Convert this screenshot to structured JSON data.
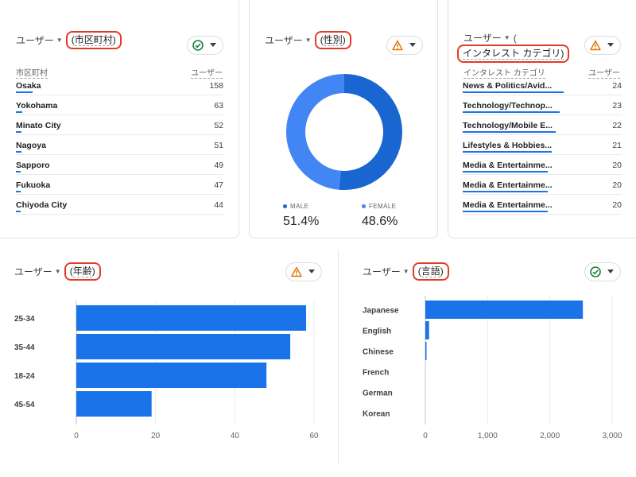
{
  "metric_label": "ユーザー",
  "colors": {
    "accent": "#1a73e8",
    "donut_male": "#1a66d1",
    "donut_female": "#4285f4",
    "highlight": "#e23b26",
    "ok": "#188038",
    "warn": "#e37400"
  },
  "city_card": {
    "dimension": "市区町村",
    "status_icon": "check-circle-icon",
    "col_dim": "市区町村",
    "col_metric": "ユーザー",
    "rows": [
      {
        "label": "Osaka",
        "value": "158",
        "share": 0.15
      },
      {
        "label": "Yokohama",
        "value": "63",
        "share": 0.06
      },
      {
        "label": "Minato City",
        "value": "52",
        "share": 0.05
      },
      {
        "label": "Nagoya",
        "value": "51",
        "share": 0.05
      },
      {
        "label": "Sapporo",
        "value": "49",
        "share": 0.045
      },
      {
        "label": "Fukuoka",
        "value": "47",
        "share": 0.045
      },
      {
        "label": "Chiyoda City",
        "value": "44",
        "share": 0.04
      }
    ]
  },
  "gender_card": {
    "dimension": "性別",
    "status_icon": "warning-icon",
    "legend": [
      {
        "name": "MALE",
        "pct": "51.4%",
        "color": "#1a66d1"
      },
      {
        "name": "FEMALE",
        "pct": "48.6%",
        "color": "#4285f4"
      }
    ]
  },
  "interest_card": {
    "dimension_prefix": "(",
    "dimension": "インタレスト カテゴリ)",
    "status_icon": "warning-icon",
    "col_dim": "インタレスト カテゴリ",
    "col_metric": "ユーザー",
    "rows": [
      {
        "label": "News & Politics/Avid...",
        "value": "24",
        "share": 1.0
      },
      {
        "label": "Technology/Technop...",
        "value": "23",
        "share": 0.96
      },
      {
        "label": "Technology/Mobile E...",
        "value": "22",
        "share": 0.92
      },
      {
        "label": "Lifestyles & Hobbies...",
        "value": "21",
        "share": 0.88
      },
      {
        "label": "Media & Entertainme...",
        "value": "20",
        "share": 0.84
      },
      {
        "label": "Media & Entertainme...",
        "value": "20",
        "share": 0.84
      },
      {
        "label": "Media & Entertainme...",
        "value": "20",
        "share": 0.84
      }
    ]
  },
  "age_card": {
    "dimension": "年齢",
    "status_icon": "warning-icon"
  },
  "lang_card": {
    "dimension": "言語",
    "status_icon": "check-circle-icon"
  },
  "chart_data": [
    {
      "type": "pie",
      "labels": [
        "MALE",
        "FEMALE"
      ],
      "values": [
        51.4,
        48.6
      ],
      "donut": true
    },
    {
      "type": "bar",
      "orientation": "horizontal",
      "categories": [
        "25-34",
        "35-44",
        "18-24",
        "45-54"
      ],
      "values": [
        58,
        54,
        48,
        19
      ],
      "xlim": [
        0,
        60
      ],
      "xticks": [
        "0",
        "20",
        "40",
        "60"
      ],
      "grid": true
    },
    {
      "type": "bar",
      "orientation": "horizontal",
      "categories": [
        "Japanese",
        "English",
        "Chinese",
        "French",
        "German",
        "Korean"
      ],
      "values": [
        2530,
        60,
        8,
        0,
        0,
        0
      ],
      "xlim": [
        0,
        3000
      ],
      "xticks": [
        "0",
        "1,000",
        "2,000",
        "3,000"
      ],
      "grid": true
    }
  ]
}
